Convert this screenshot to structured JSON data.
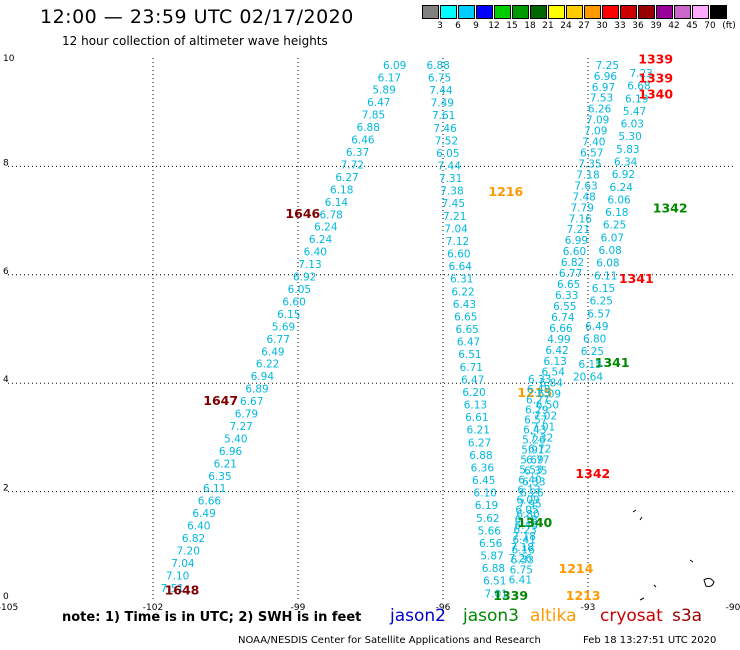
{
  "header": {
    "title": "12:00 — 23:59 UTC 02/17/2020",
    "subtitle": "12 hour collection of altimeter wave heights"
  },
  "color_scale": {
    "values": [
      "3",
      "6",
      "9",
      "12",
      "15",
      "18",
      "21",
      "24",
      "27",
      "30",
      "33",
      "36",
      "39",
      "42",
      "45",
      "70"
    ],
    "unit": "(ft)",
    "colors": [
      "#808080",
      "#00ffff",
      "#00ccff",
      "#0000ff",
      "#00cc00",
      "#009900",
      "#006600",
      "#ffff00",
      "#ffcc00",
      "#ff9900",
      "#ff0000",
      "#cc0000",
      "#990000",
      "#990099",
      "#cc66cc",
      "#ffaaff",
      "#000000"
    ]
  },
  "axes": {
    "x_ticks": [
      "-105",
      "-102",
      "-99",
      "-96",
      "-93",
      "-90"
    ],
    "y_ticks": [
      "0",
      "2",
      "4",
      "6",
      "8",
      "10"
    ]
  },
  "footer": {
    "note": "note:  1) Time is in UTC; 2) SWH is in feet",
    "satellites": [
      {
        "name": "jason2",
        "color": "#0000cc"
      },
      {
        "name": "jason3",
        "color": "#008800"
      },
      {
        "name": "altika",
        "color": "#ff9900"
      },
      {
        "name": "cryosat",
        "color": "#cc0000"
      },
      {
        "name": "s3a",
        "color": "#990000"
      }
    ],
    "credit": "NOAA/NESDIS Center for Satellite Applications and Research",
    "stamp": "Feb 18 13:27:51 UTC 2020"
  },
  "tracks": [
    {
      "satellite": "s3a",
      "readings": [
        "6.09",
        "6.17",
        "5.89",
        "6.47",
        "7.85",
        "6.88",
        "6.46",
        "6.37",
        "7.72",
        "6.27",
        "6.18",
        "6.14",
        "6.78",
        "6.24",
        "6.24",
        "6.40",
        "7.13",
        "6.92",
        "6.05",
        "6.60",
        "6.15",
        "5.69",
        "6.77",
        "6.49",
        "6.22",
        "6.94",
        "6.89",
        "6.67",
        "6.79",
        "7.27",
        "5.40",
        "6.96",
        "6.21",
        "6.35",
        "6.11",
        "6.66",
        "6.49",
        "6.40",
        "6.82",
        "7.20",
        "7.04",
        "7.10",
        "7.51"
      ],
      "time_labels": [
        {
          "text": "1646",
          "lat": 7.05,
          "lon": -98.9
        },
        {
          "text": "1647",
          "lat": 3.6,
          "lon": -100.6
        },
        {
          "text": "1648",
          "lat": 0.1,
          "lon": -101.4
        }
      ]
    },
    {
      "satellite": "altika",
      "readings": [
        "6.88",
        "6.75",
        "7.44",
        "7.49",
        "7.61",
        "7.46",
        "7.52",
        "6.05",
        "7.44",
        "7.31",
        "7.38",
        "7.45",
        "7.21",
        "7.04",
        "7.12",
        "6.60",
        "6.64",
        "6.31",
        "6.22",
        "6.43",
        "6.65",
        "6.65",
        "6.47",
        "6.51",
        "6.71",
        "6.47",
        "6.20",
        "6.13",
        "6.61",
        "6.21",
        "6.27",
        "6.88",
        "6.36",
        "6.45",
        "6.10",
        "6.19",
        "5.62",
        "5.66",
        "6.56",
        "5.87",
        "6.88",
        "6.51",
        "7.01"
      ],
      "time_labels": [
        {
          "text": "1216",
          "lat": 7.45,
          "lon": -94.7
        },
        {
          "text": "1215",
          "lat": 3.75,
          "lon": -94.1
        },
        {
          "text": "1214",
          "lat": 0.5,
          "lon": -93.25
        },
        {
          "text": "1213",
          "lat": 0.0,
          "lon": -93.1
        }
      ]
    },
    {
      "satellite": "jason2",
      "readings": [
        "6.33",
        "6.48",
        "6.27",
        "6.29",
        "6.57",
        "6.43",
        "5.26",
        "5.91",
        "5.69",
        "5.53",
        "6.40",
        "6.13",
        "6.09",
        "6.05",
        "6.18",
        "6.23",
        "6.41",
        "6.16",
        "6.33",
        "6.75",
        "6.41"
      ],
      "time_labels": []
    },
    {
      "satellite": "jason3",
      "readings": [
        "7.25",
        "6.96",
        "6.97",
        "7.53",
        "6.26",
        "7.09",
        "7.09",
        "7.40",
        "6.57",
        "7.35",
        "7.18",
        "7.63",
        "7.48",
        "7.79",
        "7.16",
        "7.21",
        "6.99",
        "6.60",
        "6.82",
        "6.77",
        "6.65",
        "6.33",
        "6.55",
        "6.74",
        "6.66",
        "4.99",
        "6.42",
        "6.13",
        "6.54",
        "6.84",
        "6.09",
        "6.50",
        "7.02",
        "7.01",
        "7.32",
        "6.72",
        "6.77",
        "6.35",
        "6.33",
        "6.26",
        "7.95",
        "6.80",
        "6.46",
        "7.18",
        "7.18",
        "7.26"
      ],
      "time_labels": [
        {
          "text": "1342",
          "lat": 7.15,
          "lon": -91.3
        },
        {
          "text": "1341",
          "lat": 4.3,
          "lon": -92.5
        },
        {
          "text": "1340",
          "lat": 1.35,
          "lon": -94.1
        },
        {
          "text": "1339",
          "lat": 0.0,
          "lon": -94.6
        }
      ]
    },
    {
      "satellite": "cryosat",
      "readings": [
        "7.23",
        "6.68",
        "6.19",
        "5.47",
        "6.03",
        "5.30",
        "5.83",
        "6.34",
        "6.92",
        "6.24",
        "6.06",
        "6.18",
        "6.25",
        "6.07",
        "6.08",
        "6.08",
        "6.11",
        "6.15",
        "6.25",
        "6.57",
        "6.49",
        "6.80",
        "6.25",
        "6.15",
        "20.64"
      ],
      "time_labels": [
        {
          "text": "1339",
          "lat": 9.9,
          "lon": -91.6
        },
        {
          "text": "1339",
          "lat": 9.55,
          "lon": -91.6
        },
        {
          "text": "1340",
          "lat": 9.25,
          "lon": -91.6
        },
        {
          "text": "1341",
          "lat": 5.85,
          "lon": -92.0
        },
        {
          "text": "1342",
          "lat": 2.25,
          "lon": -92.9
        }
      ]
    }
  ]
}
